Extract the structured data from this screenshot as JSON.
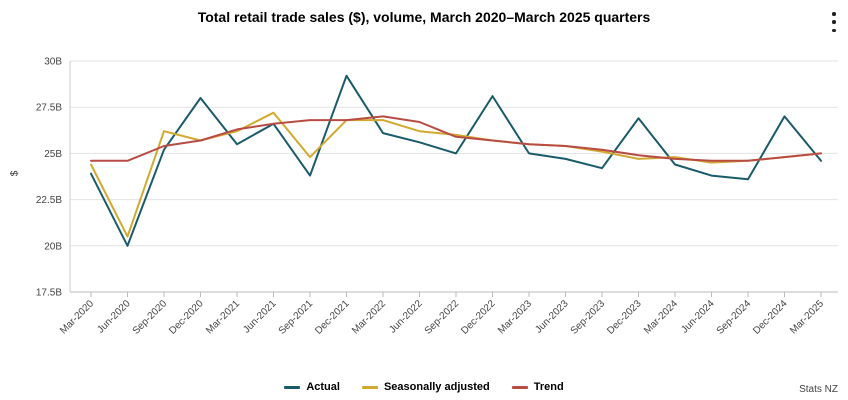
{
  "menu_icon": "kebab-menu-icon",
  "credit": "Stats NZ",
  "chart_data": {
    "type": "line",
    "title": "Total retail trade sales ($), volume, March 2020–March 2025 quarters",
    "xlabel": "",
    "ylabel": "$",
    "ylim": [
      17.5,
      30
    ],
    "yticks": [
      17.5,
      20,
      22.5,
      25,
      27.5,
      30
    ],
    "ytick_labels": [
      "17.5B",
      "20B",
      "22.5B",
      "25B",
      "27.5B",
      "30B"
    ],
    "categories": [
      "Mar-2020",
      "Jun-2020",
      "Sep-2020",
      "Dec-2020",
      "Mar-2021",
      "Jun-2021",
      "Sep-2021",
      "Dec-2021",
      "Mar-2022",
      "Jun-2022",
      "Sep-2022",
      "Dec-2022",
      "Mar-2023",
      "Jun-2023",
      "Sep-2023",
      "Dec-2023",
      "Mar-2024",
      "Jun-2024",
      "Sep-2024",
      "Dec-2024",
      "Mar-2025"
    ],
    "legend_position": "bottom",
    "series": [
      {
        "name": "Actual",
        "color": "#1a5b6b",
        "values": [
          23.9,
          20.0,
          25.2,
          28.0,
          25.5,
          26.6,
          23.8,
          29.2,
          26.1,
          25.6,
          25.0,
          28.1,
          25.0,
          24.7,
          24.2,
          26.9,
          24.4,
          23.8,
          23.6,
          27.0,
          24.6
        ]
      },
      {
        "name": "Seasonally adjusted",
        "color": "#d2a92f",
        "values": [
          24.4,
          20.5,
          26.2,
          25.7,
          26.2,
          27.2,
          24.8,
          26.8,
          26.8,
          26.2,
          26.0,
          25.7,
          25.5,
          25.4,
          25.1,
          24.7,
          24.8,
          24.5,
          24.6,
          24.8,
          25.0
        ]
      },
      {
        "name": "Trend",
        "color": "#b84c45",
        "values": [
          24.6,
          24.6,
          25.4,
          25.7,
          26.3,
          26.6,
          26.8,
          26.8,
          27.0,
          26.7,
          25.9,
          25.7,
          25.5,
          25.4,
          25.2,
          24.9,
          24.7,
          24.6,
          24.6,
          24.8,
          25.0
        ]
      }
    ]
  }
}
